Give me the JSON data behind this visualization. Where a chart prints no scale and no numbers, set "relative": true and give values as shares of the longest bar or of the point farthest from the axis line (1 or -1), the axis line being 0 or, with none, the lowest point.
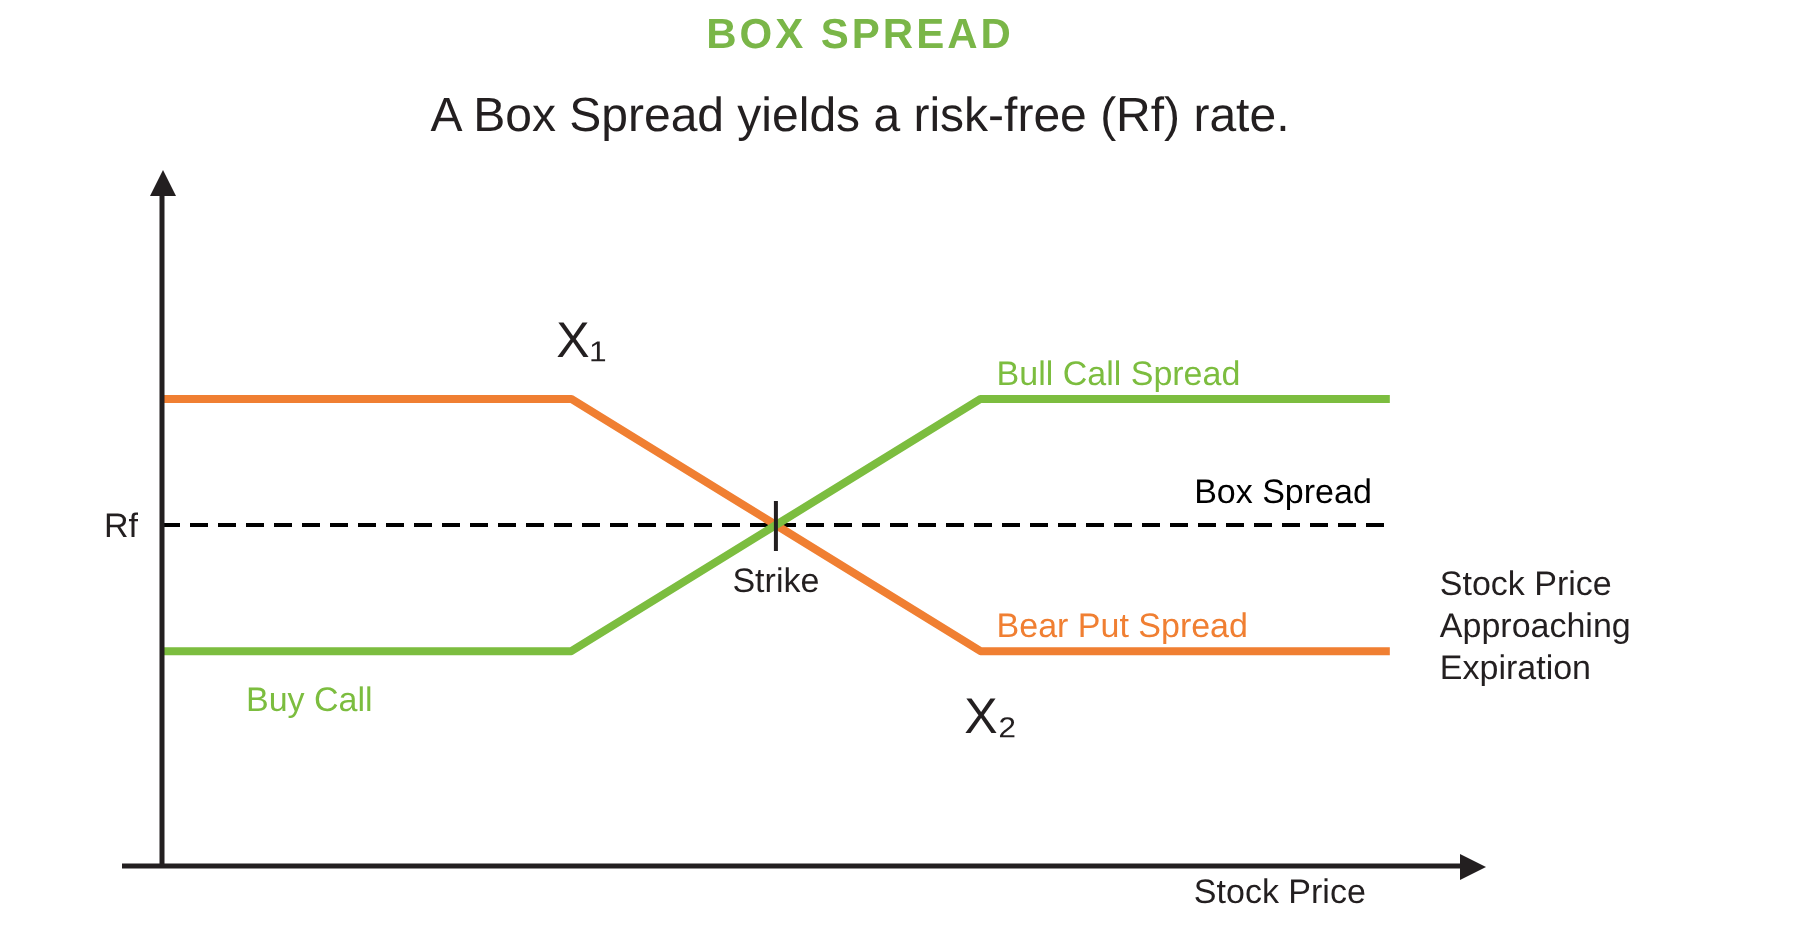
{
  "chart_data": {
    "type": "line",
    "title": "BOX SPREAD",
    "subtitle": "A Box Spread yields a risk-free (Rf) rate.",
    "xlabel": "Stock Price",
    "categories": [
      null,
      null,
      null,
      null,
      null,
      null,
      null
    ],
    "relative": true,
    "series": [
      {
        "name": "Bull Call Spread",
        "color": "#7cbd3f",
        "values": [
          0.46,
          0.46,
          0.46,
          0.73,
          1,
          1,
          1
        ]
      },
      {
        "name": "Bear Put Spread",
        "color": "#f07f32",
        "values": [
          1,
          1,
          1,
          0.73,
          0.46,
          0.46,
          0.46
        ]
      }
    ],
    "ref_lines": [
      {
        "axis": "y",
        "value": 0.73,
        "label": "Box Spread",
        "color": "#000000",
        "line_style": "dashed"
      }
    ],
    "annotations": [
      {
        "text": "X₁",
        "y": 1
      },
      {
        "text": "X₂",
        "y": 0.46
      },
      {
        "text": "Strike",
        "y": 0.73
      },
      "Rf",
      {
        "text": "Buy Call",
        "y": 0.46
      },
      "Stock Price Approaching Expiration"
    ]
  }
}
